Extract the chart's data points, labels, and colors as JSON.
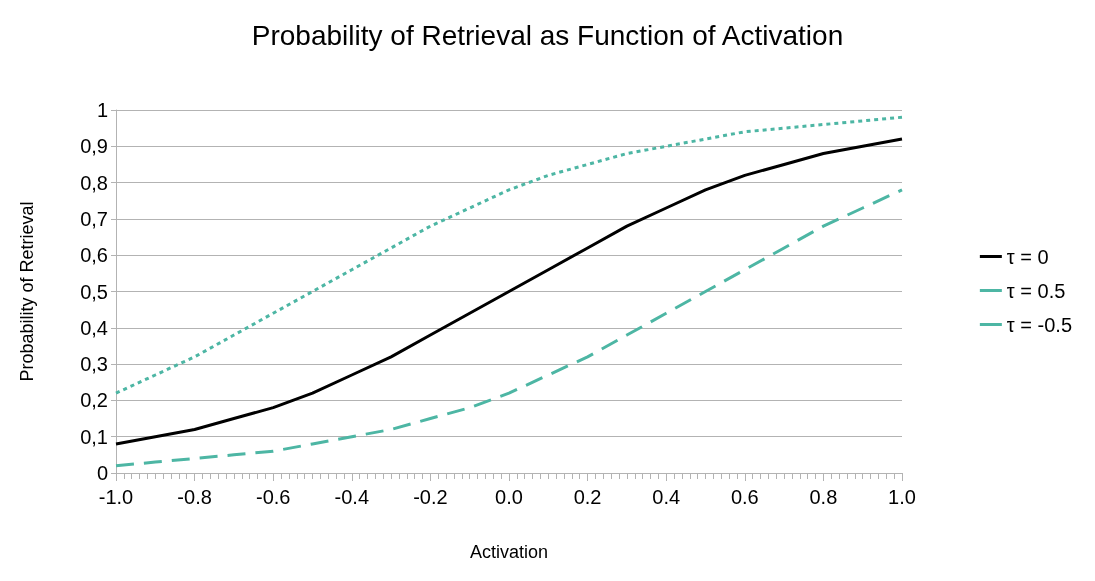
{
  "chart_data": {
    "type": "line",
    "title": "Probability of Retrieval as Function of Activation",
    "xlabel": "Activation",
    "ylabel": "Probability of Retrieval",
    "x": [
      -1.0,
      -0.9,
      -0.8,
      -0.7,
      -0.6,
      -0.5,
      -0.4,
      -0.3,
      -0.2,
      -0.1,
      0.0,
      0.1,
      0.2,
      0.3,
      0.4,
      0.5,
      0.6,
      0.7,
      0.8,
      0.9,
      1.0
    ],
    "series": [
      {
        "name": "τ = 0",
        "color": "#000000",
        "line_style": "solid",
        "values": [
          0.08,
          0.1,
          0.12,
          0.15,
          0.18,
          0.22,
          0.27,
          0.32,
          0.38,
          0.44,
          0.5,
          0.56,
          0.62,
          0.68,
          0.73,
          0.78,
          0.82,
          0.85,
          0.88,
          0.9,
          0.92
        ]
      },
      {
        "name": "τ = 0.5",
        "color": "#4db6a4",
        "line_style": "dashed",
        "values": [
          0.02,
          0.03,
          0.04,
          0.05,
          0.06,
          0.08,
          0.1,
          0.12,
          0.15,
          0.18,
          0.22,
          0.27,
          0.32,
          0.38,
          0.44,
          0.5,
          0.56,
          0.62,
          0.68,
          0.73,
          0.78
        ]
      },
      {
        "name": "τ = -0.5",
        "color": "#4db6a4",
        "line_style": "dotted",
        "values": [
          0.22,
          0.27,
          0.32,
          0.38,
          0.44,
          0.5,
          0.56,
          0.62,
          0.68,
          0.73,
          0.78,
          0.82,
          0.85,
          0.88,
          0.9,
          0.92,
          0.94,
          0.95,
          0.96,
          0.97,
          0.98
        ]
      }
    ],
    "xlim": [
      -1.0,
      1.0
    ],
    "xticks": [
      {
        "value": -1.0,
        "label": "-1.0"
      },
      {
        "value": -0.8,
        "label": "-0.8"
      },
      {
        "value": -0.6,
        "label": "-0.6"
      },
      {
        "value": -0.4,
        "label": "-0.4"
      },
      {
        "value": -0.2,
        "label": "-0.2"
      },
      {
        "value": 0,
        "label": "0.0"
      },
      {
        "value": 0.2,
        "label": "0.2"
      },
      {
        "value": 0.4,
        "label": "0.4"
      },
      {
        "value": 0.6,
        "label": "0.6"
      },
      {
        "value": 0.8,
        "label": "0.8"
      },
      {
        "value": 1.0,
        "label": "1.0"
      }
    ],
    "ylim": [
      0,
      1
    ],
    "yticks": [
      0,
      {
        "value": 0.1,
        "label": "0,1"
      },
      {
        "value": 0.2,
        "label": "0,2"
      },
      {
        "value": 0.3,
        "label": "0,3"
      },
      {
        "value": 0.4,
        "label": "0,4"
      },
      {
        "value": 0.5,
        "label": "0,5"
      },
      {
        "value": 0.6,
        "label": "0,6"
      },
      {
        "value": 0.7,
        "label": "0,7"
      },
      {
        "value": 0.8,
        "label": "0,8"
      },
      {
        "value": 0.9,
        "label": "0,9"
      },
      1
    ],
    "grid": "y",
    "legend": "right",
    "marker": "none"
  }
}
